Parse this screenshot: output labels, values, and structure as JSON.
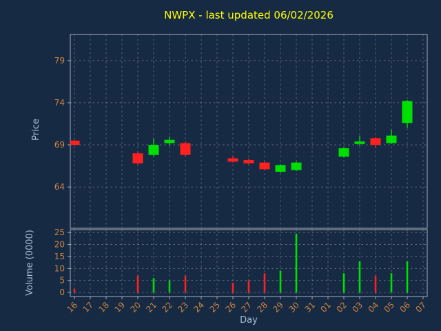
{
  "chart_data": {
    "type": "candlestick",
    "title": "NWPX - last updated 06/02/2026",
    "xlabel": "Day",
    "x_categories": [
      "16",
      "17",
      "18",
      "19",
      "20",
      "21",
      "22",
      "23",
      "24",
      "25",
      "26",
      "27",
      "28",
      "29",
      "30",
      "31",
      "01",
      "02",
      "03",
      "04",
      "05",
      "06",
      "07"
    ],
    "price_panel": {
      "ylabel": "Price",
      "yticks": [
        64,
        69,
        74,
        79
      ],
      "ylim": [
        59.1,
        82.1
      ],
      "grid": true,
      "candles": [
        {
          "day": "16",
          "open": 69.5,
          "high": 69.6,
          "low": 68.9,
          "close": 69.0
        },
        {
          "day": "20",
          "open": 68.0,
          "high": 68.2,
          "low": 66.7,
          "close": 66.8
        },
        {
          "day": "21",
          "open": 67.8,
          "high": 69.7,
          "low": 67.6,
          "close": 69.0
        },
        {
          "day": "22",
          "open": 69.2,
          "high": 70.0,
          "low": 68.9,
          "close": 69.6
        },
        {
          "day": "23",
          "open": 69.2,
          "high": 69.4,
          "low": 67.6,
          "close": 67.8
        },
        {
          "day": "26",
          "open": 67.4,
          "high": 67.7,
          "low": 66.9,
          "close": 67.0
        },
        {
          "day": "27",
          "open": 67.2,
          "high": 67.4,
          "low": 66.7,
          "close": 66.8
        },
        {
          "day": "28",
          "open": 66.9,
          "high": 67.0,
          "low": 66.0,
          "close": 66.1
        },
        {
          "day": "29",
          "open": 65.8,
          "high": 66.7,
          "low": 65.7,
          "close": 66.6
        },
        {
          "day": "30",
          "open": 66.0,
          "high": 67.0,
          "low": 65.9,
          "close": 66.9
        },
        {
          "day": "02",
          "open": 67.6,
          "high": 68.7,
          "low": 67.5,
          "close": 68.6
        },
        {
          "day": "03",
          "open": 69.1,
          "high": 70.1,
          "low": 68.9,
          "close": 69.4
        },
        {
          "day": "04",
          "open": 69.8,
          "high": 69.9,
          "low": 68.6,
          "close": 69.0
        },
        {
          "day": "05",
          "open": 69.2,
          "high": 70.8,
          "low": 69.1,
          "close": 70.1
        },
        {
          "day": "06",
          "open": 71.6,
          "high": 74.3,
          "low": 71.0,
          "close": 74.2
        }
      ]
    },
    "volume_panel": {
      "ylabel": "Volume (0000)",
      "yticks": [
        0,
        5,
        10,
        15,
        20,
        25
      ],
      "ylim": [
        -1.7,
        26.2
      ],
      "grid": true,
      "bars": [
        {
          "day": "16",
          "value": 1.5,
          "direction": "down"
        },
        {
          "day": "20",
          "value": 7,
          "direction": "down"
        },
        {
          "day": "21",
          "value": 6,
          "direction": "up"
        },
        {
          "day": "22",
          "value": 5,
          "direction": "up"
        },
        {
          "day": "23",
          "value": 7,
          "direction": "down"
        },
        {
          "day": "26",
          "value": 4,
          "direction": "down"
        },
        {
          "day": "27",
          "value": 5,
          "direction": "down"
        },
        {
          "day": "28",
          "value": 8,
          "direction": "down"
        },
        {
          "day": "29",
          "value": 9,
          "direction": "up"
        },
        {
          "day": "30",
          "value": 24.5,
          "direction": "up"
        },
        {
          "day": "02",
          "value": 8,
          "direction": "up"
        },
        {
          "day": "03",
          "value": 13,
          "direction": "up"
        },
        {
          "day": "04",
          "value": 7,
          "direction": "down"
        },
        {
          "day": "05",
          "value": 8,
          "direction": "up"
        },
        {
          "day": "06",
          "value": 13,
          "direction": "up"
        }
      ]
    },
    "colors": {
      "background": "#172a43",
      "title": "#ffff00",
      "tick_label": "#cd8442",
      "axis_label": "#a9bfd9",
      "grid": "#cfd8e3",
      "spine": "#b4bec8",
      "up": "#00e000",
      "down": "#ff2020"
    }
  }
}
